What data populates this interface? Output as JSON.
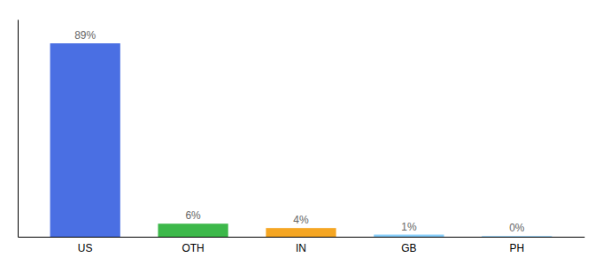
{
  "chart_data": {
    "type": "bar",
    "categories": [
      "US",
      "OTH",
      "IN",
      "GB",
      "PH"
    ],
    "values": [
      89,
      6,
      4,
      1,
      0.3
    ],
    "value_labels": [
      "89%",
      "6%",
      "4%",
      "1%",
      "0%"
    ],
    "data_labels": true,
    "colors": [
      "#4A6FE3",
      "#3DB84A",
      "#F5A623",
      "#87CEFA",
      "#87CEFA"
    ],
    "ylim": [
      0,
      100
    ],
    "tick_labels": "x"
  }
}
